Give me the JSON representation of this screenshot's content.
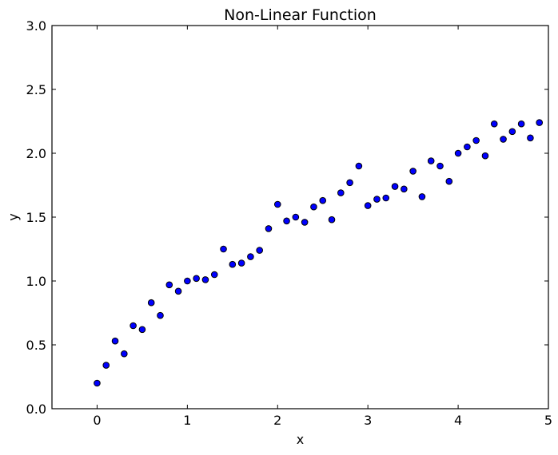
{
  "chart_data": {
    "type": "scatter",
    "title": "Non-Linear Function",
    "xlabel": "x",
    "ylabel": "y",
    "xlim": [
      -0.5,
      5
    ],
    "ylim": [
      0,
      3
    ],
    "xticks": [
      0,
      1,
      2,
      3,
      4,
      5
    ],
    "xtick_labels": [
      "0",
      "1",
      "2",
      "3",
      "4",
      "5"
    ],
    "yticks": [
      0,
      0.5,
      1,
      1.5,
      2,
      2.5,
      3
    ],
    "ytick_labels": [
      "0.0",
      "0.5",
      "1.0",
      "1.5",
      "2.0",
      "2.5",
      "3.0"
    ],
    "grid": false,
    "marker_color": "#0000ff",
    "series": [
      {
        "x": [
          0.0,
          0.1,
          0.2,
          0.3,
          0.4,
          0.5,
          0.6,
          0.7,
          0.8,
          0.9,
          1.0,
          1.1,
          1.2,
          1.3,
          1.4,
          1.5,
          1.6,
          1.7,
          1.8,
          1.9,
          2.0,
          2.1,
          2.2,
          2.3,
          2.4,
          2.5,
          2.6,
          2.7,
          2.8,
          2.9,
          3.0,
          3.1,
          3.2,
          3.3,
          3.4,
          3.5,
          3.6,
          3.7,
          3.8,
          3.9,
          4.0,
          4.1,
          4.2,
          4.3,
          4.4,
          4.5,
          4.6,
          4.7,
          4.8,
          4.9
        ],
        "y": [
          0.2,
          0.34,
          0.53,
          0.43,
          0.65,
          0.62,
          0.83,
          0.73,
          0.97,
          0.92,
          1.0,
          1.02,
          1.01,
          1.05,
          1.25,
          1.13,
          1.14,
          1.19,
          1.24,
          1.41,
          1.6,
          1.47,
          1.5,
          1.46,
          1.58,
          1.63,
          1.48,
          1.69,
          1.77,
          1.9,
          1.59,
          1.64,
          1.65,
          1.74,
          1.72,
          1.86,
          1.66,
          1.94,
          1.9,
          1.78,
          2.0,
          2.05,
          2.1,
          1.98,
          2.23,
          2.11,
          2.17,
          2.23,
          2.12,
          2.24
        ]
      }
    ]
  }
}
